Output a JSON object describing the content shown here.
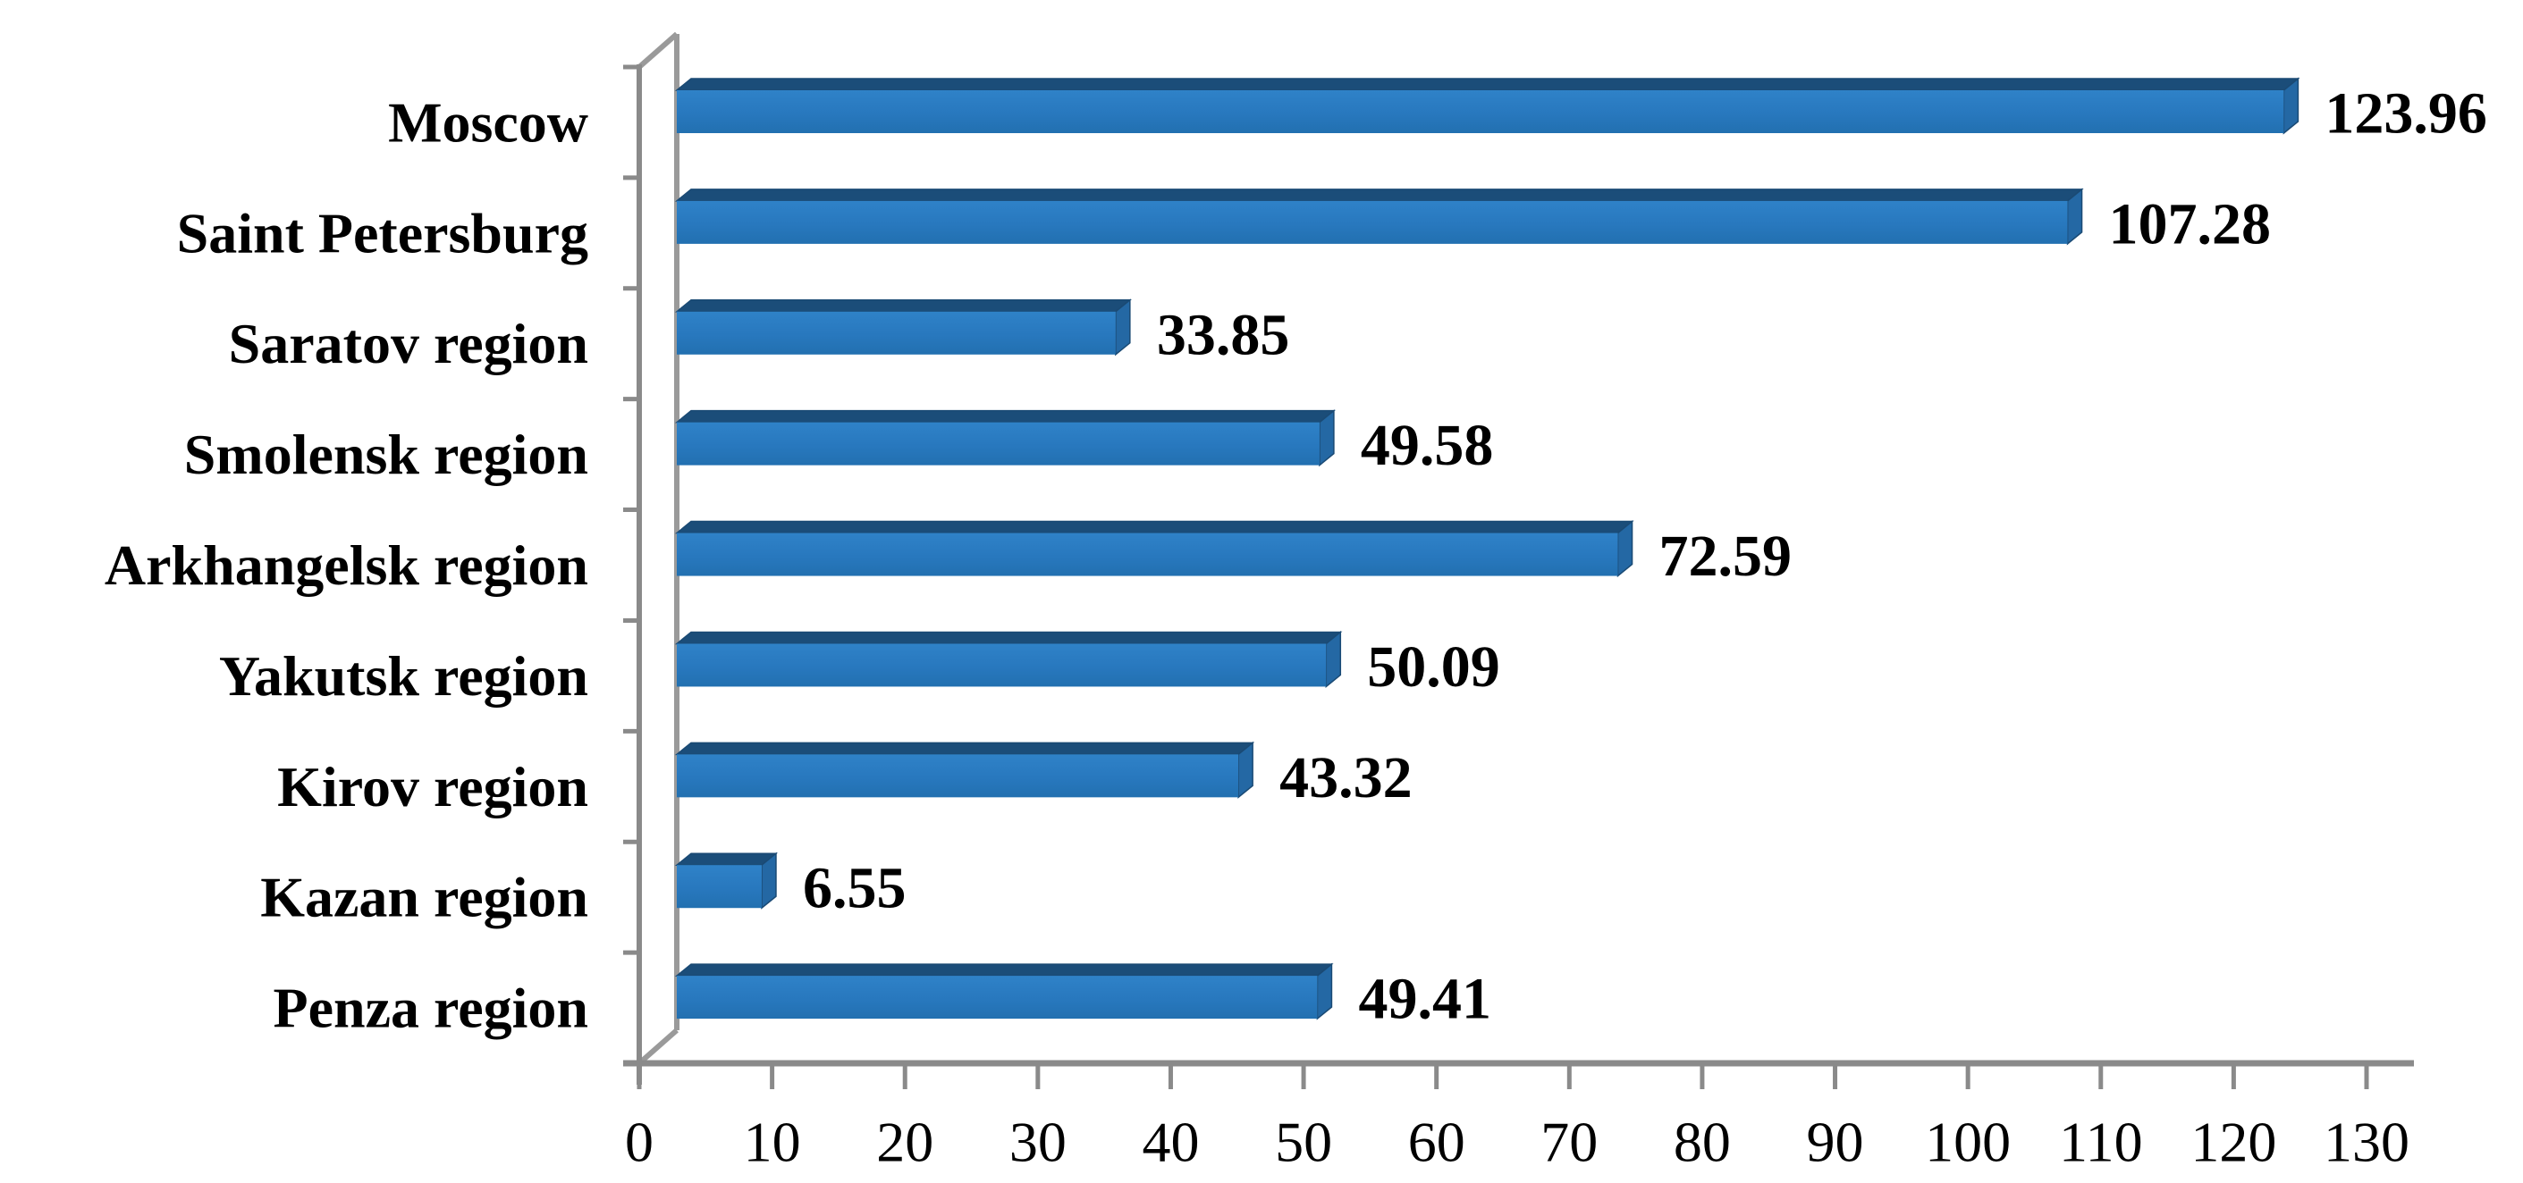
{
  "figure": {
    "background": "#ffffff"
  },
  "chart_data": {
    "type": "bar",
    "orientation": "horizontal",
    "style": "3d",
    "title": "",
    "xlabel": "",
    "ylabel": "",
    "categories": [
      "Moscow",
      "Saint Petersburg",
      "Saratov region",
      "Smolensk region",
      "Arkhangelsk region",
      "Yakutsk region",
      "Kirov region",
      "Kazan region",
      "Penza region"
    ],
    "series": [
      {
        "name": "value",
        "values": [
          123.96,
          107.28,
          33.85,
          49.58,
          72.59,
          50.09,
          43.32,
          6.55,
          49.41
        ],
        "data_labels": [
          "123.96",
          "107.28",
          "33.85",
          "49.58",
          "72.59",
          "50.09",
          "43.32",
          "6.55",
          "49.41"
        ]
      }
    ],
    "xlim": [
      0,
      130
    ],
    "xticks": [
      0,
      10,
      20,
      30,
      40,
      50,
      60,
      70,
      80,
      90,
      100,
      110,
      120,
      130
    ],
    "grid": false,
    "legend": false,
    "colors": {
      "bar_front_light": "#2F82C8",
      "bar_front": "#2878BE",
      "bar_front_dark": "#2270B0",
      "bar_top": "#1B4D79",
      "bar_side": "#2468A4",
      "bar_outline": "#1A4A74",
      "axis_line": "#8A8A8A",
      "wall_line": "#9A9A9A",
      "tick_mark": "#8A8A8A",
      "label_text": "#000000",
      "background": "#ffffff"
    }
  }
}
